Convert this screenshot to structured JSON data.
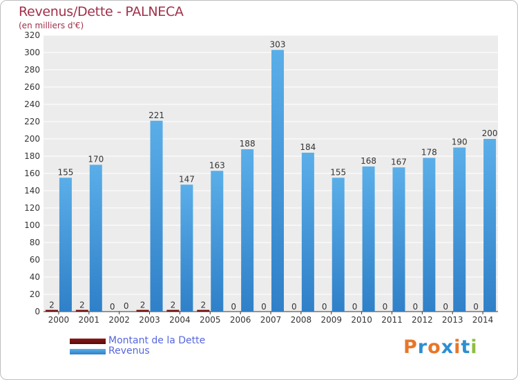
{
  "chart_data": {
    "type": "bar",
    "title": "Revenus/Dette - PALNECA",
    "subtitle": "(en milliers d'€)",
    "categories": [
      "2000",
      "2001",
      "2002",
      "2003",
      "2004",
      "2005",
      "2006",
      "2007",
      "2008",
      "2009",
      "2010",
      "2011",
      "2012",
      "2013",
      "2014"
    ],
    "series": [
      {
        "name": "Montant de la Dette",
        "color": "#6b0d0d",
        "values": [
          2,
          2,
          0,
          2,
          2,
          2,
          0,
          0,
          0,
          0,
          0,
          0,
          0,
          0,
          0
        ]
      },
      {
        "name": "Revenus",
        "color": "#4a9fe0",
        "values": [
          155,
          170,
          0,
          221,
          147,
          163,
          188,
          303,
          184,
          155,
          168,
          167,
          178,
          190,
          200
        ]
      }
    ],
    "ylim": [
      0,
      320
    ],
    "yticks": [
      0,
      20,
      40,
      60,
      80,
      100,
      120,
      140,
      160,
      180,
      200,
      220,
      240,
      260,
      280,
      300,
      320
    ],
    "grid": true,
    "legend_position": "bottom-left"
  },
  "logo": {
    "text": "Proxiti",
    "colors": [
      "#e8762a",
      "#2d8fd0",
      "#e8762a",
      "#2d8fd0",
      "#e8762a",
      "#2d8fd0",
      "#8cbf3f"
    ]
  }
}
